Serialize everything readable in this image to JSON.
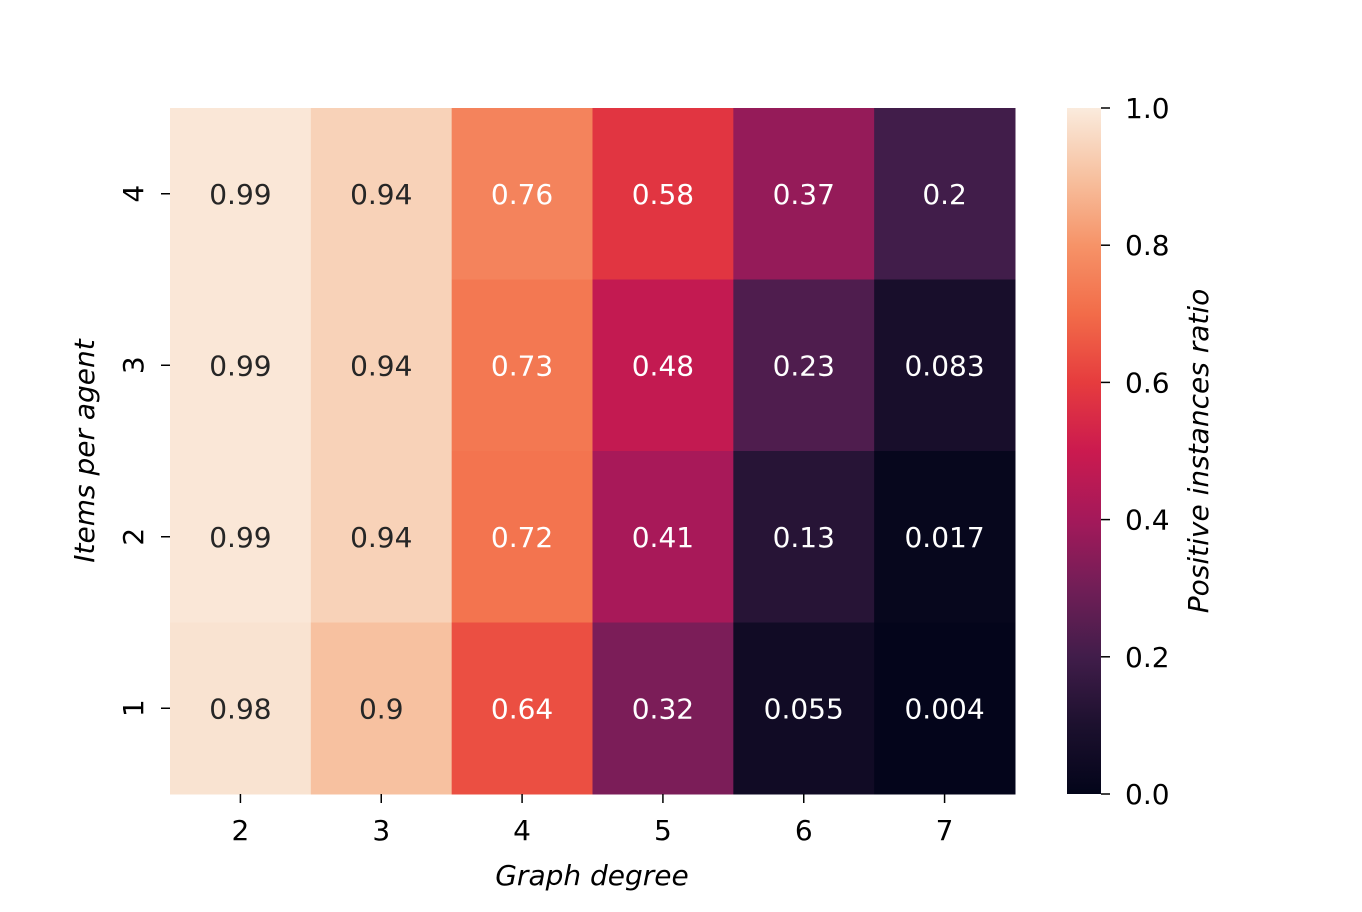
{
  "chart_data": {
    "type": "heatmap",
    "title": "",
    "xlabel": "Graph degree",
    "ylabel": "Items per agent",
    "x_categories": [
      "2",
      "3",
      "4",
      "5",
      "6",
      "7"
    ],
    "y_categories": [
      "4",
      "3",
      "2",
      "1"
    ],
    "values": [
      [
        0.99,
        0.94,
        0.76,
        0.58,
        0.37,
        0.2
      ],
      [
        0.99,
        0.94,
        0.73,
        0.48,
        0.23,
        0.083
      ],
      [
        0.99,
        0.94,
        0.72,
        0.41,
        0.13,
        0.017
      ],
      [
        0.98,
        0.9,
        0.64,
        0.32,
        0.055,
        0.004
      ]
    ],
    "annotations": [
      [
        "0.99",
        "0.94",
        "0.76",
        "0.58",
        "0.37",
        "0.2"
      ],
      [
        "0.99",
        "0.94",
        "0.73",
        "0.48",
        "0.23",
        "0.083"
      ],
      [
        "0.99",
        "0.94",
        "0.72",
        "0.41",
        "0.13",
        "0.017"
      ],
      [
        "0.98",
        "0.9",
        "0.64",
        "0.32",
        "0.055",
        "0.004"
      ]
    ],
    "colorbar": {
      "label": "Positive instances ratio",
      "range": [
        0.0,
        1.0
      ],
      "ticks": [
        "0.0",
        "0.2",
        "0.4",
        "0.6",
        "0.8",
        "1.0"
      ],
      "colormap": "rocket"
    },
    "grid": false,
    "legend": "none"
  }
}
